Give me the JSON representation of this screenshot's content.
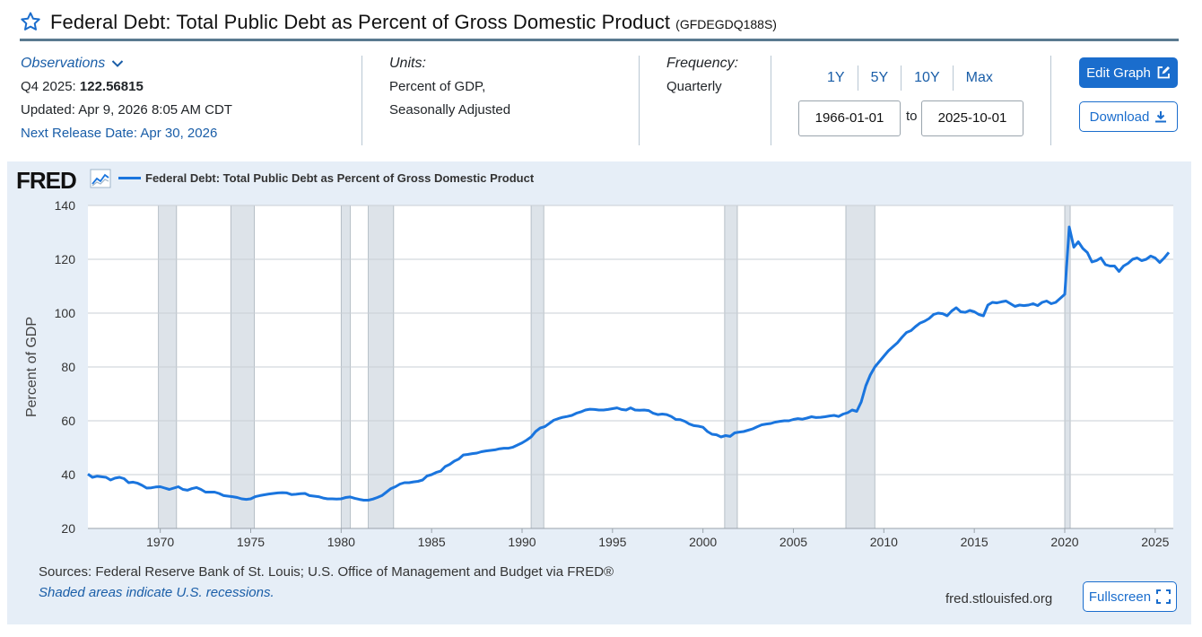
{
  "header": {
    "title": "Federal Debt: Total Public Debt as Percent of Gross Domestic Product",
    "series_id": "(GFDEGDQ188S)"
  },
  "meta": {
    "observations_label": "Observations",
    "obs_period": "Q4 2025:",
    "obs_value": "122.56815",
    "updated": "Updated: Apr 9, 2026 8:05 AM CDT",
    "next_release": "Next Release Date: Apr 30, 2026",
    "units_label": "Units:",
    "units_line1": "Percent of GDP,",
    "units_line2": "Seasonally Adjusted",
    "frequency_label": "Frequency:",
    "frequency_value": "Quarterly"
  },
  "range": {
    "buttons": [
      "1Y",
      "5Y",
      "10Y",
      "Max"
    ],
    "start_date": "1966-01-01",
    "to_label": "to",
    "end_date": "2025-10-01"
  },
  "actions": {
    "edit_graph": "Edit Graph",
    "download": "Download",
    "fullscreen": "Fullscreen"
  },
  "panel": {
    "logo_text": "FRED",
    "sources": "Sources: Federal Reserve Bank of St. Louis; U.S. Office of Management and Budget via FRED®",
    "shaded_note": "Shaded areas indicate U.S. recessions.",
    "site_url": "fred.stlouisfed.org"
  },
  "colors": {
    "line": "#1a75de",
    "recession": "#dde3e9",
    "panel_bg": "#e6eef7",
    "accent": "#1a6dcd"
  },
  "chart_data": {
    "type": "line",
    "title": "",
    "ylabel": "Percent of GDP",
    "xlabel": "",
    "legend": "Federal Debt: Total Public Debt as Percent of Gross Domestic Product",
    "xlim": [
      1966.0,
      2026.0
    ],
    "ylim": [
      20,
      140
    ],
    "y_ticks": [
      20,
      40,
      60,
      80,
      100,
      120,
      140
    ],
    "x_ticks": [
      1970,
      1975,
      1980,
      1985,
      1990,
      1995,
      2000,
      2005,
      2010,
      2015,
      2020,
      2025
    ],
    "grid": true,
    "recessions": [
      [
        1969.9,
        1970.9
      ],
      [
        1973.9,
        1975.2
      ],
      [
        1980.0,
        1980.5
      ],
      [
        1981.5,
        1982.9
      ],
      [
        1990.5,
        1991.2
      ],
      [
        2001.2,
        2001.9
      ],
      [
        2007.9,
        2009.5
      ],
      [
        2020.0,
        2020.3
      ]
    ],
    "series": [
      {
        "name": "Federal Debt: Total Public Debt as Percent of Gross Domestic Product",
        "points": [
          [
            1966.0,
            40.2
          ],
          [
            1966.25,
            39.0
          ],
          [
            1966.5,
            39.4
          ],
          [
            1966.75,
            39.2
          ],
          [
            1967.0,
            39.0
          ],
          [
            1967.25,
            38.0
          ],
          [
            1967.5,
            38.7
          ],
          [
            1967.75,
            39.0
          ],
          [
            1968.0,
            38.5
          ],
          [
            1968.25,
            37.0
          ],
          [
            1968.5,
            37.2
          ],
          [
            1968.75,
            36.8
          ],
          [
            1969.0,
            36.0
          ],
          [
            1969.25,
            35.0
          ],
          [
            1969.5,
            35.1
          ],
          [
            1969.75,
            35.4
          ],
          [
            1970.0,
            35.5
          ],
          [
            1970.25,
            35.0
          ],
          [
            1970.5,
            34.5
          ],
          [
            1970.75,
            35.0
          ],
          [
            1971.0,
            35.5
          ],
          [
            1971.25,
            34.5
          ],
          [
            1971.5,
            34.2
          ],
          [
            1971.75,
            34.8
          ],
          [
            1972.0,
            35.2
          ],
          [
            1972.25,
            34.5
          ],
          [
            1972.5,
            33.5
          ],
          [
            1972.75,
            33.5
          ],
          [
            1973.0,
            33.5
          ],
          [
            1973.25,
            33.0
          ],
          [
            1973.5,
            32.2
          ],
          [
            1973.75,
            32.0
          ],
          [
            1974.0,
            31.8
          ],
          [
            1974.25,
            31.5
          ],
          [
            1974.5,
            31.0
          ],
          [
            1974.75,
            30.8
          ],
          [
            1975.0,
            31.0
          ],
          [
            1975.25,
            31.8
          ],
          [
            1975.5,
            32.2
          ],
          [
            1975.75,
            32.5
          ],
          [
            1976.0,
            32.8
          ],
          [
            1976.25,
            33.0
          ],
          [
            1976.5,
            33.2
          ],
          [
            1976.75,
            33.3
          ],
          [
            1977.0,
            33.2
          ],
          [
            1977.25,
            32.6
          ],
          [
            1977.5,
            32.7
          ],
          [
            1977.75,
            32.9
          ],
          [
            1978.0,
            33.0
          ],
          [
            1978.25,
            32.2
          ],
          [
            1978.5,
            32.0
          ],
          [
            1978.75,
            31.8
          ],
          [
            1979.0,
            31.3
          ],
          [
            1979.25,
            31.0
          ],
          [
            1979.5,
            31.0
          ],
          [
            1979.75,
            30.9
          ],
          [
            1980.0,
            31.0
          ],
          [
            1980.25,
            31.5
          ],
          [
            1980.5,
            31.7
          ],
          [
            1980.75,
            31.2
          ],
          [
            1981.0,
            30.8
          ],
          [
            1981.25,
            30.5
          ],
          [
            1981.5,
            30.5
          ],
          [
            1981.75,
            30.9
          ],
          [
            1982.0,
            31.5
          ],
          [
            1982.25,
            32.2
          ],
          [
            1982.5,
            33.5
          ],
          [
            1982.75,
            34.8
          ],
          [
            1983.0,
            35.5
          ],
          [
            1983.25,
            36.5
          ],
          [
            1983.5,
            37.0
          ],
          [
            1983.75,
            37.0
          ],
          [
            1984.0,
            37.3
          ],
          [
            1984.25,
            37.5
          ],
          [
            1984.5,
            38.0
          ],
          [
            1984.75,
            39.5
          ],
          [
            1985.0,
            40.0
          ],
          [
            1985.25,
            40.8
          ],
          [
            1985.5,
            41.3
          ],
          [
            1985.75,
            43.0
          ],
          [
            1986.0,
            43.8
          ],
          [
            1986.25,
            45.0
          ],
          [
            1986.5,
            45.8
          ],
          [
            1986.75,
            47.3
          ],
          [
            1987.0,
            47.5
          ],
          [
            1987.25,
            47.8
          ],
          [
            1987.5,
            48.0
          ],
          [
            1987.75,
            48.5
          ],
          [
            1988.0,
            48.8
          ],
          [
            1988.25,
            49.0
          ],
          [
            1988.5,
            49.2
          ],
          [
            1988.75,
            49.6
          ],
          [
            1989.0,
            49.8
          ],
          [
            1989.25,
            49.8
          ],
          [
            1989.5,
            50.2
          ],
          [
            1989.75,
            51.0
          ],
          [
            1990.0,
            51.8
          ],
          [
            1990.25,
            52.8
          ],
          [
            1990.5,
            54.0
          ],
          [
            1990.75,
            56.0
          ],
          [
            1991.0,
            57.3
          ],
          [
            1991.25,
            57.8
          ],
          [
            1991.5,
            59.0
          ],
          [
            1991.75,
            60.2
          ],
          [
            1992.0,
            60.8
          ],
          [
            1992.25,
            61.3
          ],
          [
            1992.5,
            61.6
          ],
          [
            1992.75,
            62.0
          ],
          [
            1993.0,
            62.8
          ],
          [
            1993.25,
            63.3
          ],
          [
            1993.5,
            64.0
          ],
          [
            1993.75,
            64.3
          ],
          [
            1994.0,
            64.2
          ],
          [
            1994.25,
            64.0
          ],
          [
            1994.5,
            64.0
          ],
          [
            1994.75,
            64.2
          ],
          [
            1995.0,
            64.5
          ],
          [
            1995.25,
            64.8
          ],
          [
            1995.5,
            64.2
          ],
          [
            1995.75,
            64.0
          ],
          [
            1996.0,
            64.8
          ],
          [
            1996.25,
            64.0
          ],
          [
            1996.5,
            63.9
          ],
          [
            1996.75,
            64.0
          ],
          [
            1997.0,
            63.8
          ],
          [
            1997.25,
            62.8
          ],
          [
            1997.5,
            62.3
          ],
          [
            1997.75,
            62.5
          ],
          [
            1998.0,
            62.3
          ],
          [
            1998.25,
            61.6
          ],
          [
            1998.5,
            60.5
          ],
          [
            1998.75,
            60.4
          ],
          [
            1999.0,
            59.8
          ],
          [
            1999.25,
            58.8
          ],
          [
            1999.5,
            58.2
          ],
          [
            1999.75,
            58.0
          ],
          [
            2000.0,
            57.6
          ],
          [
            2000.25,
            56.0
          ],
          [
            2000.5,
            55.0
          ],
          [
            2000.75,
            54.8
          ],
          [
            2001.0,
            54.0
          ],
          [
            2001.25,
            54.5
          ],
          [
            2001.5,
            54.2
          ],
          [
            2001.75,
            55.5
          ],
          [
            2002.0,
            55.8
          ],
          [
            2002.25,
            56.0
          ],
          [
            2002.5,
            56.5
          ],
          [
            2002.75,
            57.0
          ],
          [
            2003.0,
            57.8
          ],
          [
            2003.25,
            58.5
          ],
          [
            2003.5,
            58.8
          ],
          [
            2003.75,
            59.0
          ],
          [
            2004.0,
            59.5
          ],
          [
            2004.25,
            59.8
          ],
          [
            2004.5,
            60.0
          ],
          [
            2004.75,
            60.0
          ],
          [
            2005.0,
            60.5
          ],
          [
            2005.25,
            60.8
          ],
          [
            2005.5,
            60.6
          ],
          [
            2005.75,
            61.0
          ],
          [
            2006.0,
            61.5
          ],
          [
            2006.25,
            61.2
          ],
          [
            2006.5,
            61.3
          ],
          [
            2006.75,
            61.5
          ],
          [
            2007.0,
            61.8
          ],
          [
            2007.25,
            62.0
          ],
          [
            2007.5,
            61.6
          ],
          [
            2007.75,
            62.5
          ],
          [
            2008.0,
            63.0
          ],
          [
            2008.25,
            64.0
          ],
          [
            2008.5,
            63.5
          ],
          [
            2008.75,
            67.0
          ],
          [
            2009.0,
            73.0
          ],
          [
            2009.25,
            77.0
          ],
          [
            2009.5,
            80.0
          ],
          [
            2009.75,
            82.0
          ],
          [
            2010.0,
            84.0
          ],
          [
            2010.25,
            86.0
          ],
          [
            2010.5,
            87.5
          ],
          [
            2010.75,
            89.0
          ],
          [
            2011.0,
            91.0
          ],
          [
            2011.25,
            92.8
          ],
          [
            2011.5,
            93.5
          ],
          [
            2011.75,
            95.0
          ],
          [
            2012.0,
            96.3
          ],
          [
            2012.25,
            97.0
          ],
          [
            2012.5,
            98.0
          ],
          [
            2012.75,
            99.5
          ],
          [
            2013.0,
            100.0
          ],
          [
            2013.25,
            99.8
          ],
          [
            2013.5,
            99.0
          ],
          [
            2013.75,
            100.8
          ],
          [
            2014.0,
            102.0
          ],
          [
            2014.25,
            100.5
          ],
          [
            2014.5,
            100.3
          ],
          [
            2014.75,
            101.0
          ],
          [
            2015.0,
            100.5
          ],
          [
            2015.25,
            99.5
          ],
          [
            2015.5,
            99.0
          ],
          [
            2015.75,
            103.0
          ],
          [
            2016.0,
            104.0
          ],
          [
            2016.25,
            103.8
          ],
          [
            2016.5,
            104.2
          ],
          [
            2016.75,
            104.5
          ],
          [
            2017.0,
            103.5
          ],
          [
            2017.25,
            102.5
          ],
          [
            2017.5,
            103.0
          ],
          [
            2017.75,
            102.8
          ],
          [
            2018.0,
            103.0
          ],
          [
            2018.25,
            103.5
          ],
          [
            2018.5,
            102.8
          ],
          [
            2018.75,
            104.0
          ],
          [
            2019.0,
            104.5
          ],
          [
            2019.25,
            103.5
          ],
          [
            2019.5,
            104.0
          ],
          [
            2019.75,
            105.5
          ],
          [
            2020.0,
            107.0
          ],
          [
            2020.25,
            132.0
          ],
          [
            2020.5,
            124.5
          ],
          [
            2020.75,
            126.5
          ],
          [
            2021.0,
            124.0
          ],
          [
            2021.25,
            122.5
          ],
          [
            2021.5,
            119.0
          ],
          [
            2021.75,
            119.5
          ],
          [
            2022.0,
            120.5
          ],
          [
            2022.25,
            118.0
          ],
          [
            2022.5,
            117.5
          ],
          [
            2022.75,
            117.5
          ],
          [
            2023.0,
            115.5
          ],
          [
            2023.25,
            117.5
          ],
          [
            2023.5,
            118.5
          ],
          [
            2023.75,
            120.0
          ],
          [
            2024.0,
            120.5
          ],
          [
            2024.25,
            119.5
          ],
          [
            2024.5,
            120.0
          ],
          [
            2024.75,
            121.2
          ],
          [
            2025.0,
            120.5
          ],
          [
            2025.25,
            118.8
          ],
          [
            2025.5,
            120.5
          ],
          [
            2025.75,
            122.56815
          ]
        ]
      }
    ]
  }
}
